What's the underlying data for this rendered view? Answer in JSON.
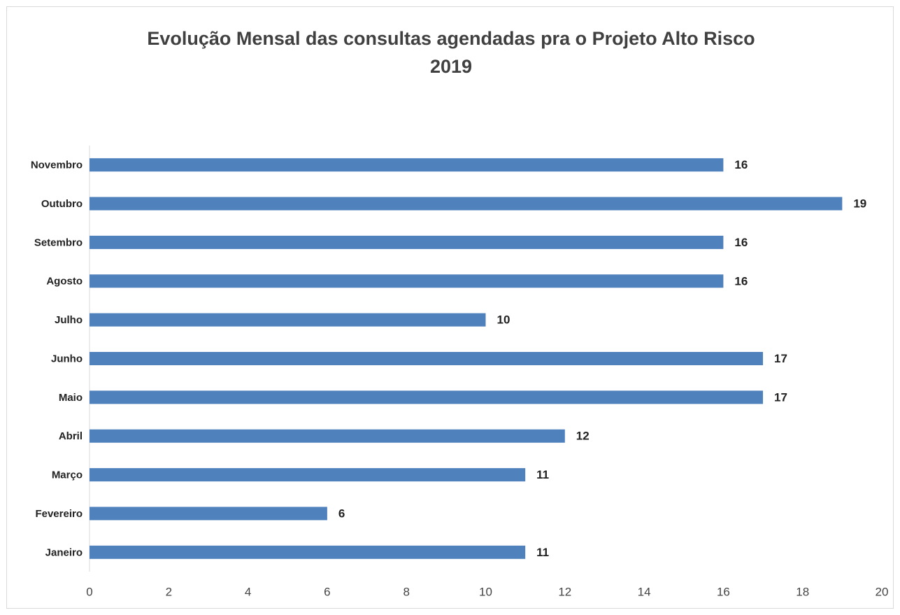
{
  "chart_data": {
    "type": "bar",
    "orientation": "horizontal",
    "title": [
      "Evolução Mensal das consultas agendadas pra o Projeto Alto Risco",
      "2019"
    ],
    "categories": [
      "Janeiro",
      "Fevereiro",
      "Março",
      "Abril",
      "Maio",
      "Junho",
      "Julho",
      "Agosto",
      "Setembro",
      "Outubro",
      "Novembro"
    ],
    "values": [
      11,
      6,
      11,
      12,
      17,
      17,
      10,
      16,
      16,
      19,
      16
    ],
    "color": "#4f81bd",
    "xlim": [
      0,
      20
    ],
    "xticks": [
      0,
      2,
      4,
      6,
      8,
      10,
      12,
      14,
      16,
      18,
      20
    ],
    "grid": false
  }
}
